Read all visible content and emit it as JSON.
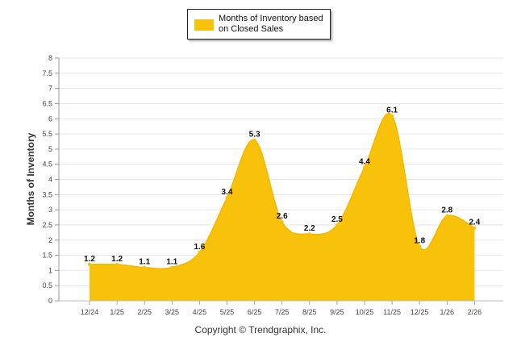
{
  "chart_data": {
    "type": "area",
    "title": "",
    "xlabel": "",
    "ylabel": "Months of Inventory",
    "ylim": [
      0,
      8
    ],
    "ytick_step": 0.5,
    "grid": true,
    "legend_position": "top-center",
    "color": "#f8c20a",
    "categories": [
      "12/24",
      "1/25",
      "2/25",
      "3/25",
      "4/25",
      "5/25",
      "6/25",
      "7/25",
      "8/25",
      "9/25",
      "10/25",
      "11/25",
      "12/25",
      "1/26",
      "2/26"
    ],
    "series": [
      {
        "name": "Months of Inventory based on Closed Sales",
        "values": [
          1.2,
          1.2,
          1.1,
          1.1,
          1.6,
          3.4,
          5.3,
          2.6,
          2.2,
          2.5,
          4.4,
          6.1,
          1.8,
          2.8,
          2.4
        ]
      }
    ]
  },
  "footer": {
    "copyright": "Copyright © Trendgraphix, Inc."
  }
}
